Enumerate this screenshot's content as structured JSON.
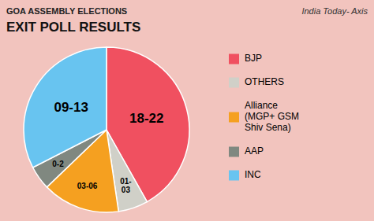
{
  "chart_data": {
    "type": "pie",
    "title": "GOA ASSEMBLY ELECTIONS",
    "subtitle": "EXIT POLL RESULTS",
    "annotations": [
      "India Today- Axis"
    ],
    "categories": [
      "BJP",
      "OTHERS",
      "Alliance\n(MGP+ GSM\nShiv Sena)",
      "AAP",
      "INC"
    ],
    "values": [
      180,
      25,
      65,
      20,
      140
    ],
    "ranges": [
      "18-22",
      "01-\n03",
      "03-06",
      "0-2",
      "09-13"
    ],
    "colors": [
      "#f05060",
      "#d0d0c8",
      "#f5a020",
      "#808880",
      "#68c4f0"
    ],
    "legend": "right"
  }
}
